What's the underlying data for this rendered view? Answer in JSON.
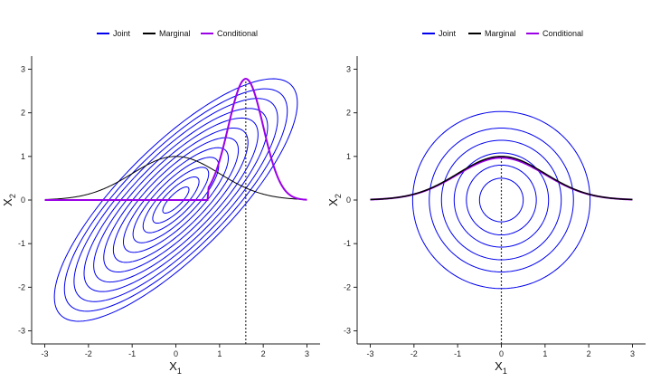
{
  "chart_data": [
    {
      "type": "line",
      "panel": "left",
      "legend": {
        "placement": "top",
        "entries": [
          {
            "label": "Joint",
            "color": "#0000ee"
          },
          {
            "label": "Marginal",
            "color": "#000000"
          },
          {
            "label": "Conditional",
            "color": "#9b00e6"
          }
        ]
      },
      "xlabel": "X",
      "xlabel_sub": "1",
      "ylabel": "X",
      "ylabel_sub": "2",
      "xlim": [
        -3.3,
        3.3
      ],
      "ylim": [
        -3.3,
        3.3
      ],
      "xticks": [
        -3,
        -2,
        -1,
        0,
        1,
        2,
        3
      ],
      "yticks": [
        -3,
        -2,
        -1,
        0,
        1,
        2,
        3
      ],
      "grid": false,
      "joint": {
        "rho": 0.8,
        "sd_x": 1,
        "sd_y": 1,
        "contour_mahalanobis_radii": [
          0.3,
          0.53,
          0.75,
          0.98,
          1.2,
          1.43,
          1.65,
          1.88,
          2.1,
          2.33,
          2.55,
          2.78
        ]
      },
      "marginal": {
        "mean": 0,
        "sd": 1,
        "scale_to_peak": 1.0,
        "x_range": [
          -3,
          3
        ]
      },
      "conditional": {
        "mean": 1.6,
        "sd": 0.4,
        "peak": 2.78,
        "truncate_left_of": 0.75,
        "x_range": [
          -3,
          3
        ]
      },
      "reference_line_x": 1.6
    },
    {
      "type": "line",
      "panel": "right",
      "legend": {
        "placement": "top",
        "entries": [
          {
            "label": "Joint",
            "color": "#0000ee"
          },
          {
            "label": "Marginal",
            "color": "#000000"
          },
          {
            "label": "Conditional",
            "color": "#9b00e6"
          }
        ]
      },
      "xlabel": "X",
      "xlabel_sub": "1",
      "ylabel": "X",
      "ylabel_sub": "2",
      "xlim": [
        -3.3,
        3.3
      ],
      "ylim": [
        -3.3,
        3.3
      ],
      "xticks": [
        -3,
        -2,
        -1,
        0,
        1,
        2,
        3
      ],
      "yticks": [
        -3,
        -2,
        -1,
        0,
        1,
        2,
        3
      ],
      "grid": false,
      "joint": {
        "rho": 0,
        "circle_radii": [
          0.5,
          0.8,
          1.08,
          1.37,
          1.65,
          2.03
        ]
      },
      "marginal": {
        "mean": 0,
        "sd": 1,
        "scale_to_peak": 1.0,
        "x_range": [
          -3,
          3
        ]
      },
      "conditional": {
        "mean": 0,
        "sd": 1,
        "peak": 0.97,
        "x_range": [
          -3,
          3
        ]
      },
      "reference_line_x": 0
    }
  ]
}
